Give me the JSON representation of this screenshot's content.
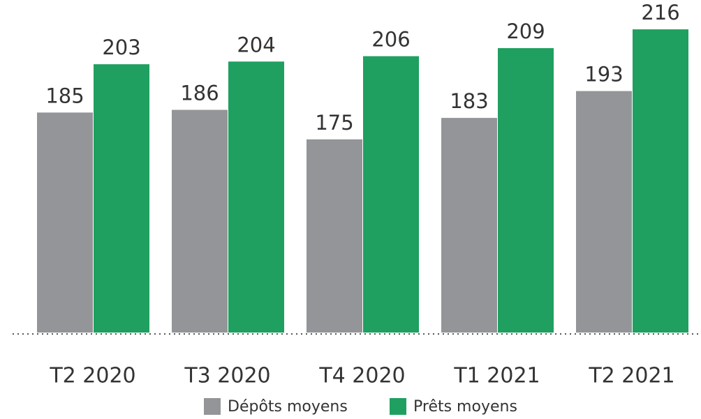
{
  "chart_data": {
    "type": "bar",
    "categories": [
      "T2 2020",
      "T3 2020",
      "T4 2020",
      "T1 2021",
      "T2 2021"
    ],
    "series": [
      {
        "name": "Dépôts moyens",
        "color": "#939598",
        "values": [
          185,
          186,
          175,
          183,
          193
        ]
      },
      {
        "name": "Prêts moyens",
        "color": "#1fa060",
        "values": [
          203,
          204,
          206,
          209,
          216
        ]
      }
    ],
    "ylim": [
      103,
      222
    ],
    "legend": "bottom"
  }
}
